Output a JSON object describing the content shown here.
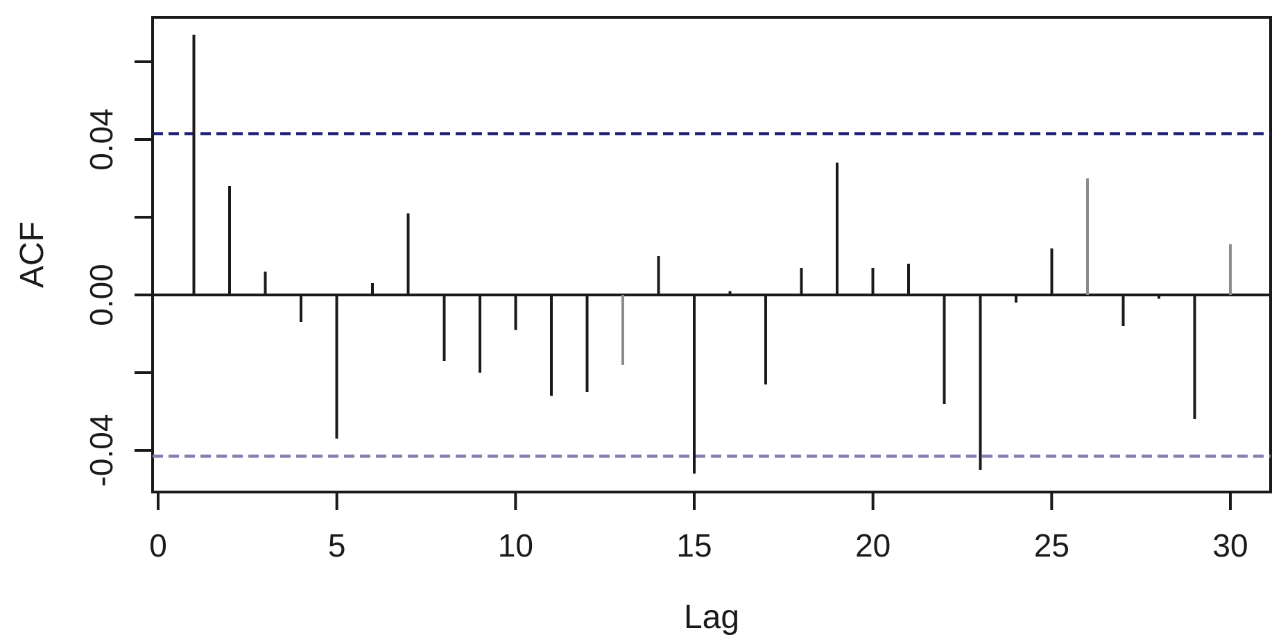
{
  "figure": {
    "background": "#ffffff",
    "title": ""
  },
  "chart_data": {
    "type": "bar",
    "style": "acf-stem-plot",
    "title": "",
    "xlabel": "Lag",
    "ylabel": "ACF",
    "x": [
      1,
      2,
      3,
      4,
      5,
      6,
      7,
      8,
      9,
      10,
      11,
      12,
      13,
      14,
      15,
      16,
      17,
      18,
      19,
      20,
      21,
      22,
      23,
      24,
      25,
      26,
      27,
      28,
      29,
      30
    ],
    "values": [
      0.067,
      0.028,
      0.006,
      -0.007,
      -0.037,
      0.003,
      0.021,
      -0.017,
      -0.02,
      -0.009,
      -0.026,
      -0.025,
      -0.018,
      0.01,
      -0.046,
      0.001,
      -0.023,
      0.007,
      0.034,
      0.007,
      0.008,
      -0.028,
      -0.045,
      -0.002,
      0.012,
      0.03,
      -0.008,
      -0.001,
      -0.032,
      0.013
    ],
    "muted_lags": [
      13,
      26,
      30
    ],
    "zero_line": 0,
    "conf_bound_upper": 0.0415,
    "conf_bound_lower": -0.0415,
    "xticks": [
      0,
      5,
      10,
      15,
      20,
      25,
      30
    ],
    "xtick_labels": [
      "0",
      "5",
      "10",
      "15",
      "20",
      "25",
      "30"
    ],
    "yticks_all": [
      -0.04,
      -0.02,
      0,
      0.02,
      0.04,
      0.06
    ],
    "ytick_labels": [
      {
        "value": 0.04,
        "label": "0.04"
      },
      {
        "value": 0.0,
        "label": "0.00"
      },
      {
        "value": -0.04,
        "label": "-0.04"
      }
    ],
    "xlim": [
      -0.16,
      31.16
    ],
    "ylim": [
      -0.0505,
      0.0716
    ],
    "grid": false,
    "legend": "none",
    "colors": {
      "spike": "#1a1a1a",
      "spike_muted": "#8c8c8c",
      "axis": "#1a1a1a",
      "ci_upper_line": "#1f1f78",
      "ci_lower_line": "#8080b3",
      "background": "#ffffff"
    }
  }
}
